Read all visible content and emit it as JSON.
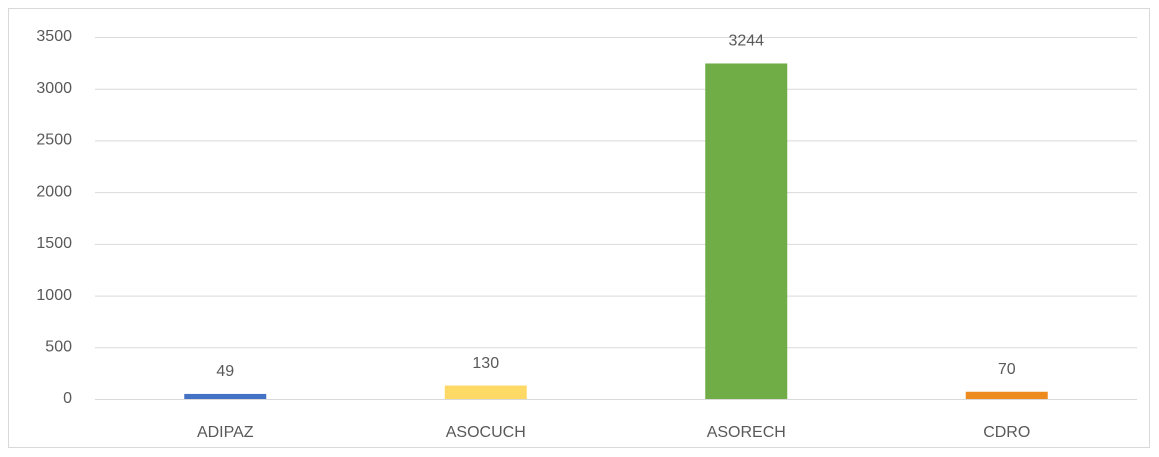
{
  "chart_data": {
    "type": "bar",
    "categories": [
      "ADIPAZ",
      "ASOCUCH",
      "ASORECH",
      "CDRO"
    ],
    "values": [
      49,
      130,
      3244,
      70
    ],
    "colors": [
      "#4472c4",
      "#ffd966",
      "#70ad47",
      "#ed8b1f"
    ],
    "ylim": [
      0,
      3500
    ],
    "yticks": [
      0,
      500,
      1000,
      1500,
      2000,
      2500,
      3000,
      3500
    ],
    "grid": true,
    "data_labels": true
  }
}
